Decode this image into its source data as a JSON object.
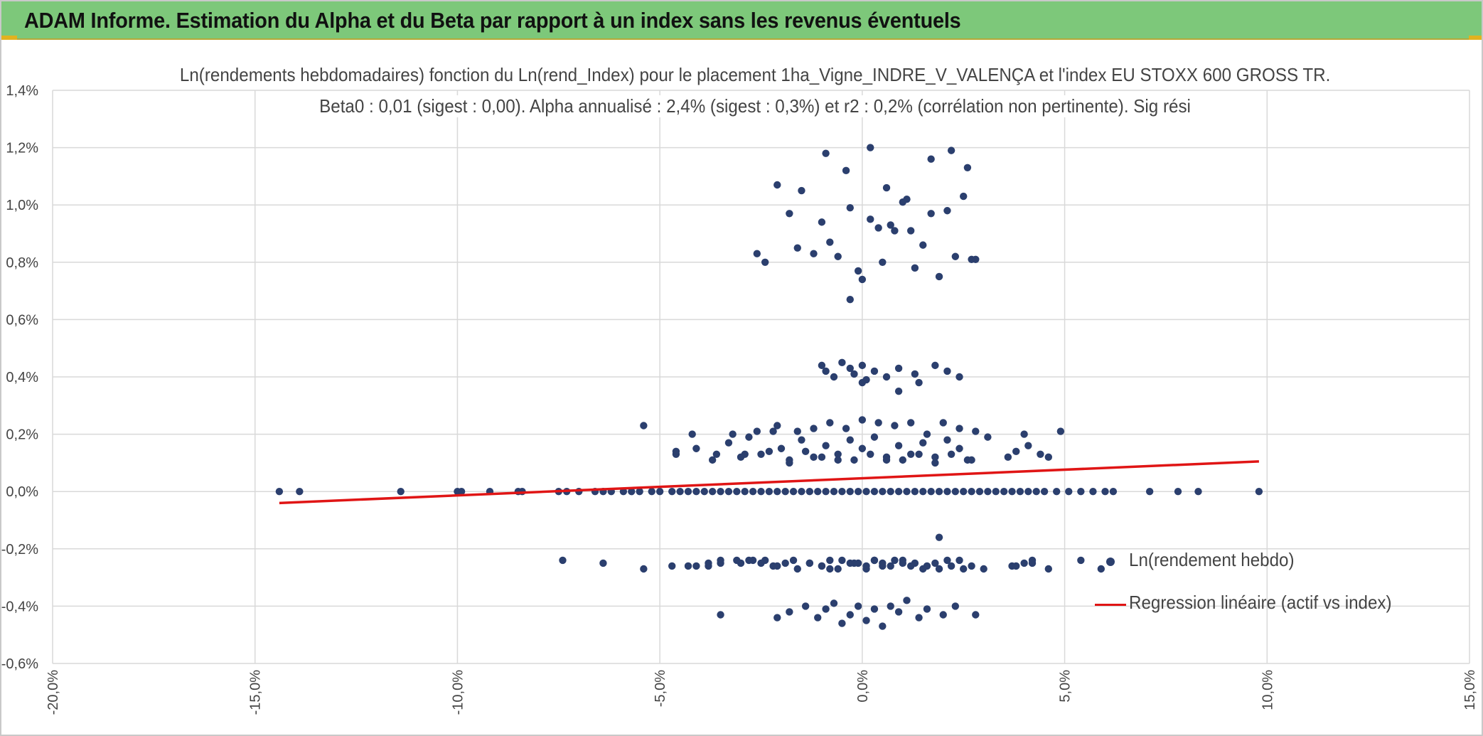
{
  "header": {
    "title": "ADAM Informe. Estimation du Alpha et du Beta par rapport à un index sans les revenus éventuels"
  },
  "colors": {
    "banner": "#7dc87a",
    "points": "#2b3f6e",
    "regression": "#e01515",
    "grid": "#d9d9d9",
    "text": "#444444"
  },
  "chart_data": {
    "type": "scatter",
    "title": "Ln(rendements hebdomadaires) fonction du Ln(rend_Index) pour le placement 1ha_Vigne_INDRE_V_VALENÇA et l'index EU STOXX 600 GROSS TR.",
    "subtitle": "Beta0 : 0,01 (sigest : 0,00). Alpha annualisé : 2,4% (sigest : 0,3%) et r2 : 0,2% (corrélation non pertinente). Sig rési",
    "xlabel": "",
    "ylabel": "",
    "xlim": [
      -0.2,
      0.15
    ],
    "ylim": [
      -0.006,
      0.014
    ],
    "x_ticks": [
      -0.2,
      -0.15,
      -0.1,
      -0.05,
      0.0,
      0.05,
      0.1,
      0.15
    ],
    "x_tick_labels": [
      "-20,0%",
      "-15,0%",
      "-10,0%",
      "-5,0%",
      "0,0%",
      "5,0%",
      "10,0%",
      "15,0%"
    ],
    "y_ticks": [
      -0.006,
      -0.004,
      -0.002,
      0.0,
      0.002,
      0.004,
      0.006,
      0.008,
      0.01,
      0.012,
      0.014
    ],
    "y_tick_labels": [
      "-0,6%",
      "-0,4%",
      "-0,2%",
      "0,0%",
      "0,2%",
      "0,4%",
      "0,6%",
      "0,8%",
      "1,0%",
      "1,2%",
      "1,4%"
    ],
    "grid": true,
    "legend_position": "right",
    "series": [
      {
        "name": "Ln(rendement hebdo)",
        "type": "scatter",
        "x": [
          -0.144,
          -0.139,
          -0.114,
          -0.1,
          -0.099,
          -0.092,
          -0.085,
          -0.084,
          -0.075,
          -0.073,
          -0.07,
          -0.066,
          -0.064,
          -0.062,
          -0.059,
          -0.057,
          -0.055,
          -0.052,
          -0.05,
          -0.047,
          -0.045,
          -0.043,
          -0.041,
          -0.039,
          -0.037,
          -0.035,
          -0.033,
          -0.031,
          -0.029,
          -0.027,
          -0.025,
          -0.023,
          -0.021,
          -0.019,
          -0.017,
          -0.015,
          -0.013,
          -0.011,
          -0.009,
          -0.007,
          -0.005,
          -0.003,
          -0.001,
          0.001,
          0.003,
          0.005,
          0.007,
          0.009,
          0.011,
          0.013,
          0.015,
          0.017,
          0.019,
          0.021,
          0.023,
          0.025,
          0.027,
          0.029,
          0.031,
          0.033,
          0.035,
          0.037,
          0.039,
          0.041,
          0.043,
          0.045,
          0.048,
          0.051,
          0.054,
          0.057,
          0.06,
          0.062,
          0.071,
          0.078,
          0.083,
          0.098,
          -0.021,
          -0.015,
          -0.009,
          -0.004,
          0.002,
          0.006,
          0.011,
          0.017,
          0.022,
          0.026,
          -0.026,
          -0.024,
          -0.018,
          -0.016,
          -0.012,
          -0.01,
          -0.008,
          -0.006,
          -0.003,
          -0.001,
          0.0,
          0.002,
          0.004,
          0.005,
          0.007,
          0.008,
          0.01,
          0.012,
          0.013,
          0.015,
          0.017,
          0.019,
          0.021,
          0.023,
          0.025,
          0.027,
          0.028,
          -0.01,
          -0.009,
          -0.007,
          -0.005,
          -0.003,
          -0.002,
          0.0,
          0.001,
          0.003,
          0.006,
          0.009,
          0.013,
          0.014,
          0.018,
          0.021,
          0.024,
          -0.054,
          -0.046,
          -0.042,
          -0.036,
          -0.032,
          -0.029,
          -0.026,
          -0.023,
          -0.021,
          -0.018,
          -0.016,
          -0.014,
          -0.012,
          -0.01,
          -0.008,
          -0.006,
          -0.004,
          -0.002,
          0.0,
          0.002,
          0.004,
          0.006,
          0.008,
          0.01,
          0.012,
          0.014,
          0.016,
          0.018,
          0.02,
          0.022,
          0.024,
          0.026,
          0.028,
          0.031,
          0.036,
          0.04,
          0.046,
          0.049,
          -0.046,
          -0.041,
          -0.037,
          -0.033,
          -0.03,
          -0.028,
          -0.025,
          -0.022,
          -0.02,
          -0.018,
          -0.015,
          -0.012,
          -0.009,
          -0.006,
          -0.003,
          0.0,
          0.003,
          0.006,
          0.009,
          0.012,
          0.015,
          0.018,
          0.021,
          0.024,
          0.027,
          0.038,
          0.041,
          0.044,
          -0.043,
          -0.038,
          -0.035,
          -0.03,
          -0.027,
          -0.024,
          -0.021,
          -0.017,
          -0.013,
          -0.01,
          -0.008,
          -0.005,
          -0.002,
          0.001,
          0.003,
          0.005,
          0.007,
          0.01,
          0.013,
          0.016,
          0.019,
          0.022,
          0.025,
          0.037,
          0.042,
          0.046,
          -0.074,
          -0.064,
          -0.054,
          -0.047,
          -0.041,
          -0.038,
          -0.035,
          -0.031,
          -0.028,
          -0.025,
          -0.022,
          -0.019,
          -0.016,
          -0.013,
          -0.01,
          -0.008,
          -0.006,
          -0.003,
          -0.001,
          0.001,
          0.003,
          0.005,
          0.008,
          0.01,
          0.012,
          0.015,
          0.018,
          0.021,
          0.024,
          0.027,
          0.03,
          0.038,
          0.04,
          0.042,
          0.054,
          0.059,
          -0.035,
          -0.021,
          -0.018,
          -0.014,
          -0.011,
          -0.009,
          -0.007,
          -0.005,
          -0.003,
          -0.001,
          0.001,
          0.003,
          0.005,
          0.007,
          0.009,
          0.011,
          0.014,
          0.016,
          0.02,
          0.023,
          0.028,
          -0.003,
          0.0,
          0.009,
          0.019
        ],
        "y": [
          0,
          0,
          0,
          0,
          0,
          0,
          0,
          0,
          0,
          0,
          0,
          0,
          0,
          0,
          0,
          0,
          0,
          0,
          0,
          0,
          0,
          0,
          0,
          0,
          0,
          0,
          0,
          0,
          0,
          0,
          0,
          0,
          0,
          0,
          0,
          0,
          0,
          0,
          0,
          0,
          0,
          0,
          0,
          0,
          0,
          0,
          0,
          0,
          0,
          0,
          0,
          0,
          0,
          0,
          0,
          0,
          0,
          0,
          0,
          0,
          0,
          0,
          0,
          0,
          0,
          0,
          0,
          0,
          0,
          0,
          0,
          0,
          0,
          0,
          0,
          0,
          0.0107,
          0.0105,
          0.0118,
          0.0112,
          0.012,
          0.0106,
          0.0102,
          0.0116,
          0.0119,
          0.0113,
          0.0083,
          0.008,
          0.0097,
          0.0085,
          0.0083,
          0.0094,
          0.0087,
          0.0082,
          0.0099,
          0.0077,
          0.0074,
          0.0095,
          0.0092,
          0.008,
          0.0093,
          0.0091,
          0.0101,
          0.0091,
          0.0078,
          0.0086,
          0.0097,
          0.0075,
          0.0098,
          0.0082,
          0.0103,
          0.0081,
          0.0081,
          0.0044,
          0.0042,
          0.004,
          0.0045,
          0.0043,
          0.0041,
          0.0044,
          0.0039,
          0.0042,
          0.004,
          0.0043,
          0.0041,
          0.0038,
          0.0044,
          0.0042,
          0.004,
          0.0023,
          0.0013,
          0.002,
          0.0013,
          0.002,
          0.0013,
          0.0021,
          0.0014,
          0.0023,
          0.0011,
          0.0021,
          0.0014,
          0.0022,
          0.0012,
          0.0024,
          0.0013,
          0.0022,
          0.0011,
          0.0025,
          0.0013,
          0.0024,
          0.0012,
          0.0023,
          0.0011,
          0.0024,
          0.0013,
          0.002,
          0.0012,
          0.0024,
          0.0013,
          0.0022,
          0.0011,
          0.0021,
          0.0019,
          0.0012,
          0.002,
          0.0012,
          0.0021,
          0.0014,
          0.0015,
          0.0011,
          0.0017,
          0.0012,
          0.0019,
          0.0013,
          0.0021,
          0.0015,
          0.001,
          0.0018,
          0.0012,
          0.0016,
          0.0011,
          0.0018,
          0.0015,
          0.0019,
          0.0011,
          0.0016,
          0.0013,
          0.0017,
          0.001,
          0.0018,
          0.0015,
          0.0011,
          0.0014,
          0.0016,
          0.0013,
          -0.0026,
          -0.0026,
          -0.0025,
          -0.0025,
          -0.0024,
          -0.0024,
          -0.0026,
          -0.0024,
          -0.0025,
          -0.0026,
          -0.0027,
          -0.0024,
          -0.0025,
          -0.0026,
          -0.0024,
          -0.0025,
          -0.0026,
          -0.0024,
          -0.0025,
          -0.0026,
          -0.0027,
          -0.0026,
          -0.0027,
          -0.0026,
          -0.0025,
          -0.0027,
          -0.0024,
          -0.0025,
          -0.0027,
          -0.0026,
          -0.0026,
          -0.0025,
          -0.0024,
          -0.0024,
          -0.0024,
          -0.0025,
          -0.0026,
          -0.0025,
          -0.0027,
          -0.0025,
          -0.0026,
          -0.0024,
          -0.0027,
          -0.0025,
          -0.0025,
          -0.0027,
          -0.0024,
          -0.0026,
          -0.0024,
          -0.0025,
          -0.0026,
          -0.0027,
          -0.0025,
          -0.0024,
          -0.0024,
          -0.0026,
          -0.0027,
          -0.0026,
          -0.0025,
          -0.0024,
          -0.0024,
          -0.0027,
          -0.0043,
          -0.0044,
          -0.0042,
          -0.004,
          -0.0044,
          -0.0041,
          -0.0039,
          -0.0046,
          -0.0043,
          -0.004,
          -0.0045,
          -0.0041,
          -0.0047,
          -0.004,
          -0.0042,
          -0.0038,
          -0.0044,
          -0.0041,
          -0.0043,
          -0.004,
          -0.0043,
          0.0067,
          0.0038,
          0.0035,
          -0.0016
        ],
        "color": "#2b3f6e"
      },
      {
        "name": "Regression linéaire (actif vs index)",
        "type": "line",
        "x": [
          -0.144,
          0.098
        ],
        "y": [
          -0.0004,
          0.00105
        ],
        "color": "#e01515"
      }
    ]
  }
}
